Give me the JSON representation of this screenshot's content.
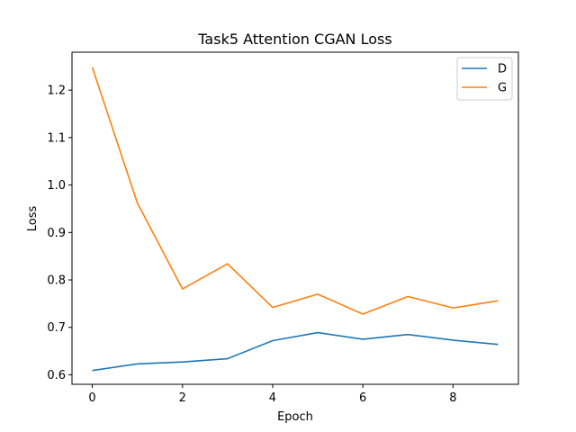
{
  "chart_data": {
    "type": "line",
    "title": "Task5 Attention CGAN Loss",
    "xlabel": "Epoch",
    "ylabel": "Loss",
    "x": [
      0,
      1,
      2,
      3,
      4,
      5,
      6,
      7,
      8,
      9
    ],
    "xlim": [
      -0.45,
      9.45
    ],
    "ylim": [
      0.58,
      1.28
    ],
    "xticks": [
      0,
      2,
      4,
      6,
      8
    ],
    "yticks": [
      0.6,
      0.7,
      0.8,
      0.9,
      1.0,
      1.1,
      1.2
    ],
    "xtick_labels": [
      "0",
      "2",
      "4",
      "6",
      "8"
    ],
    "ytick_labels": [
      "0.6",
      "0.7",
      "0.8",
      "0.9",
      "1.0",
      "1.1",
      "1.2"
    ],
    "grid": false,
    "legend_position": "top-right",
    "series": [
      {
        "name": "D",
        "color": "#1f77b4",
        "values": [
          0.609,
          0.623,
          0.627,
          0.634,
          0.672,
          0.689,
          0.675,
          0.685,
          0.673,
          0.664
        ]
      },
      {
        "name": "G",
        "color": "#ff7f0e",
        "values": [
          1.248,
          0.962,
          0.781,
          0.834,
          0.742,
          0.77,
          0.728,
          0.765,
          0.741,
          0.756
        ]
      }
    ]
  }
}
